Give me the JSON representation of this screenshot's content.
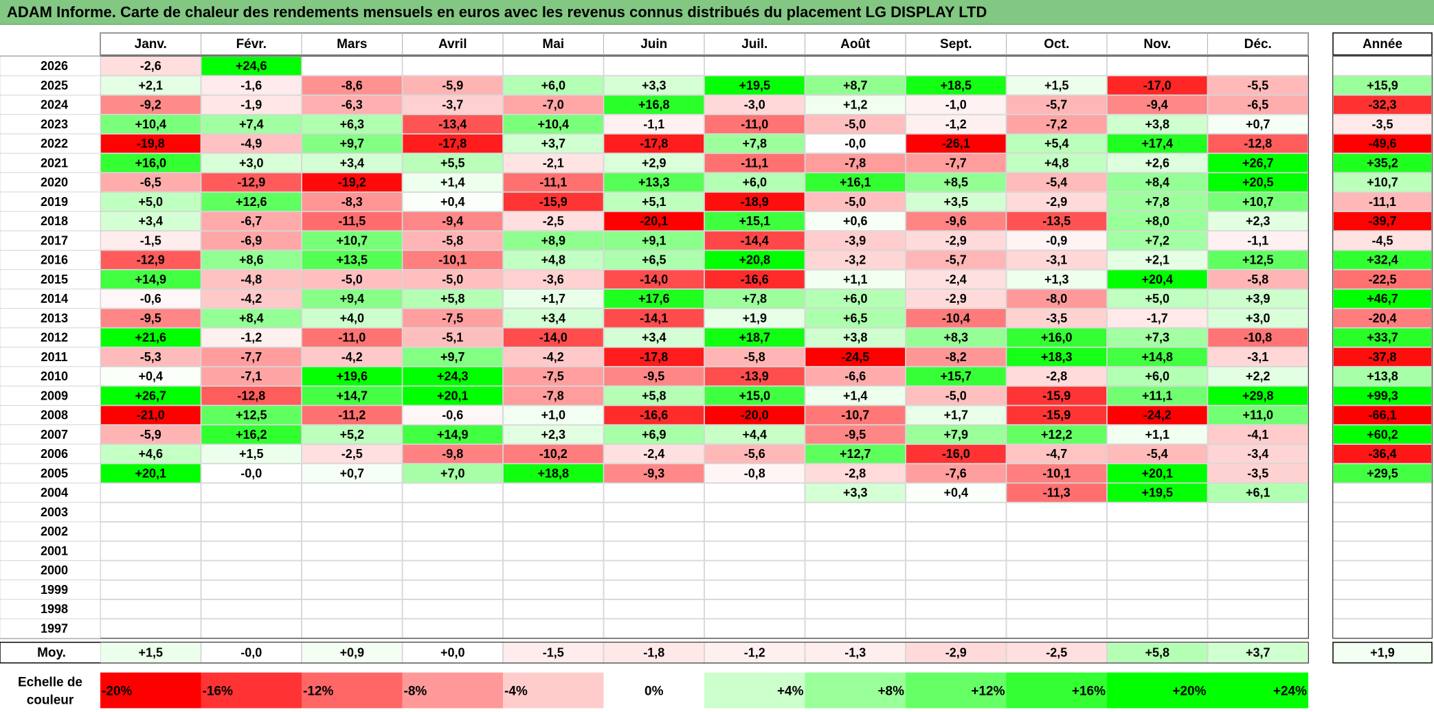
{
  "title": "ADAM Informe. Carte de chaleur des rendements mensuels en euros avec les revenus connus distribués du placement LG DISPLAY LTD",
  "chart_data": {
    "type": "heatmap",
    "months": [
      "Janv.",
      "Févr.",
      "Mars",
      "Avril",
      "Mai",
      "Juin",
      "Juil.",
      "Août",
      "Sept.",
      "Oct.",
      "Nov.",
      "Déc."
    ],
    "year_header": "Année",
    "rows": [
      {
        "year": "2026",
        "months": [
          "-2,6",
          "+24,6",
          "",
          "",
          "",
          "",
          "",
          "",
          "",
          "",
          "",
          ""
        ],
        "annual": ""
      },
      {
        "year": "2025",
        "months": [
          "+2,1",
          "-1,6",
          "-8,6",
          "-5,9",
          "+6,0",
          "+3,3",
          "+19,5",
          "+8,7",
          "+18,5",
          "+1,5",
          "-17,0",
          "-5,5"
        ],
        "annual": "+15,9"
      },
      {
        "year": "2024",
        "months": [
          "-9,2",
          "-1,9",
          "-6,3",
          "-3,7",
          "-7,0",
          "+16,8",
          "-3,0",
          "+1,2",
          "-1,0",
          "-5,7",
          "-9,4",
          "-6,5"
        ],
        "annual": "-32,3"
      },
      {
        "year": "2023",
        "months": [
          "+10,4",
          "+7,4",
          "+6,3",
          "-13,4",
          "+10,4",
          "-1,1",
          "-11,0",
          "-5,0",
          "-1,2",
          "-7,2",
          "+3,8",
          "+0,7"
        ],
        "annual": "-3,5"
      },
      {
        "year": "2022",
        "months": [
          "-19,8",
          "-4,9",
          "+9,7",
          "-17,8",
          "+3,7",
          "-17,8",
          "+7,8",
          "-0,0",
          "-26,1",
          "+5,4",
          "+17,4",
          "-12,8"
        ],
        "annual": "-49,6"
      },
      {
        "year": "2021",
        "months": [
          "+16,0",
          "+3,0",
          "+3,4",
          "+5,5",
          "-2,1",
          "+2,9",
          "-11,1",
          "-7,8",
          "-7,7",
          "+4,8",
          "+2,6",
          "+26,7"
        ],
        "annual": "+35,2"
      },
      {
        "year": "2020",
        "months": [
          "-6,5",
          "-12,9",
          "-19,2",
          "+1,4",
          "-11,1",
          "+13,3",
          "+6,0",
          "+16,1",
          "+8,5",
          "-5,4",
          "+8,4",
          "+20,5"
        ],
        "annual": "+10,7"
      },
      {
        "year": "2019",
        "months": [
          "+5,0",
          "+12,6",
          "-8,3",
          "+0,4",
          "-15,9",
          "+5,1",
          "-18,9",
          "-5,0",
          "+3,5",
          "-2,9",
          "+7,8",
          "+10,7"
        ],
        "annual": "-11,1"
      },
      {
        "year": "2018",
        "months": [
          "+3,4",
          "-6,7",
          "-11,5",
          "-9,4",
          "-2,5",
          "-20,1",
          "+15,1",
          "+0,6",
          "-9,6",
          "-13,5",
          "+8,0",
          "+2,3"
        ],
        "annual": "-39,7"
      },
      {
        "year": "2017",
        "months": [
          "-1,5",
          "-6,9",
          "+10,7",
          "-5,8",
          "+8,9",
          "+9,1",
          "-14,4",
          "-3,9",
          "-2,9",
          "-0,9",
          "+7,2",
          "-1,1"
        ],
        "annual": "-4,5"
      },
      {
        "year": "2016",
        "months": [
          "-12,9",
          "+8,6",
          "+13,5",
          "-10,1",
          "+4,8",
          "+6,5",
          "+20,8",
          "-3,2",
          "-5,7",
          "-3,1",
          "+2,1",
          "+12,5"
        ],
        "annual": "+32,4"
      },
      {
        "year": "2015",
        "months": [
          "+14,9",
          "-4,8",
          "-5,0",
          "-5,0",
          "-3,6",
          "-14,0",
          "-16,6",
          "+1,1",
          "-2,4",
          "+1,3",
          "+20,4",
          "-5,8"
        ],
        "annual": "-22,5"
      },
      {
        "year": "2014",
        "months": [
          "-0,6",
          "-4,2",
          "+9,4",
          "+5,8",
          "+1,7",
          "+17,6",
          "+7,8",
          "+6,0",
          "-2,9",
          "-8,0",
          "+5,0",
          "+3,9"
        ],
        "annual": "+46,7"
      },
      {
        "year": "2013",
        "months": [
          "-9,5",
          "+8,4",
          "+4,0",
          "-7,5",
          "+3,4",
          "-14,1",
          "+1,9",
          "+6,5",
          "-10,4",
          "-3,5",
          "-1,7",
          "+3,0"
        ],
        "annual": "-20,4"
      },
      {
        "year": "2012",
        "months": [
          "+21,6",
          "-1,2",
          "-11,0",
          "-5,1",
          "-14,0",
          "+3,4",
          "+18,7",
          "+3,8",
          "+8,3",
          "+16,0",
          "+7,3",
          "-10,8"
        ],
        "annual": "+33,7"
      },
      {
        "year": "2011",
        "months": [
          "-5,3",
          "-7,7",
          "-4,2",
          "+9,7",
          "-4,2",
          "-17,8",
          "-5,8",
          "-24,5",
          "-8,2",
          "+18,3",
          "+14,8",
          "-3,1"
        ],
        "annual": "-37,8"
      },
      {
        "year": "2010",
        "months": [
          "+0,4",
          "-7,1",
          "+19,6",
          "+24,3",
          "-7,5",
          "-9,5",
          "-13,9",
          "-6,6",
          "+15,7",
          "-2,8",
          "+6,0",
          "+2,2"
        ],
        "annual": "+13,8"
      },
      {
        "year": "2009",
        "months": [
          "+26,7",
          "-12,8",
          "+14,7",
          "+20,1",
          "-7,8",
          "+5,8",
          "+15,0",
          "+1,4",
          "-5,0",
          "-15,9",
          "+11,1",
          "+29,8"
        ],
        "annual": "+99,3"
      },
      {
        "year": "2008",
        "months": [
          "-21,0",
          "+12,5",
          "-11,2",
          "-0,6",
          "+1,0",
          "-16,6",
          "-20,0",
          "-10,7",
          "+1,7",
          "-15,9",
          "-24,2",
          "+11,0"
        ],
        "annual": "-66,1"
      },
      {
        "year": "2007",
        "months": [
          "-5,9",
          "+16,2",
          "+5,2",
          "+14,9",
          "+2,3",
          "+6,9",
          "+4,4",
          "-9,5",
          "+7,9",
          "+12,2",
          "+1,1",
          "-4,1"
        ],
        "annual": "+60,2"
      },
      {
        "year": "2006",
        "months": [
          "+4,6",
          "+1,5",
          "-2,5",
          "-9,8",
          "-10,2",
          "-2,4",
          "-5,6",
          "+12,7",
          "-16,0",
          "-4,7",
          "-5,4",
          "-3,4"
        ],
        "annual": "-36,4"
      },
      {
        "year": "2005",
        "months": [
          "+20,1",
          "-0,0",
          "+0,7",
          "+7,0",
          "+18,8",
          "-9,3",
          "-0,8",
          "-2,8",
          "-7,6",
          "-10,1",
          "+20,1",
          "-3,5"
        ],
        "annual": "+29,5"
      },
      {
        "year": "2004",
        "months": [
          "",
          "",
          "",
          "",
          "",
          "",
          "",
          "+3,3",
          "+0,4",
          "-11,3",
          "+19,5",
          "+6,1"
        ],
        "annual": ""
      },
      {
        "year": "2003",
        "months": [
          "",
          "",
          "",
          "",
          "",
          "",
          "",
          "",
          "",
          "",
          "",
          ""
        ],
        "annual": ""
      },
      {
        "year": "2002",
        "months": [
          "",
          "",
          "",
          "",
          "",
          "",
          "",
          "",
          "",
          "",
          "",
          ""
        ],
        "annual": ""
      },
      {
        "year": "2001",
        "months": [
          "",
          "",
          "",
          "",
          "",
          "",
          "",
          "",
          "",
          "",
          "",
          ""
        ],
        "annual": ""
      },
      {
        "year": "2000",
        "months": [
          "",
          "",
          "",
          "",
          "",
          "",
          "",
          "",
          "",
          "",
          "",
          ""
        ],
        "annual": ""
      },
      {
        "year": "1999",
        "months": [
          "",
          "",
          "",
          "",
          "",
          "",
          "",
          "",
          "",
          "",
          "",
          ""
        ],
        "annual": ""
      },
      {
        "year": "1998",
        "months": [
          "",
          "",
          "",
          "",
          "",
          "",
          "",
          "",
          "",
          "",
          "",
          ""
        ],
        "annual": ""
      },
      {
        "year": "1997",
        "months": [
          "",
          "",
          "",
          "",
          "",
          "",
          "",
          "",
          "",
          "",
          "",
          ""
        ],
        "annual": ""
      }
    ],
    "average": {
      "label": "Moy.",
      "months": [
        "+1,5",
        "-0,0",
        "+0,9",
        "+0,0",
        "-1,5",
        "-1,8",
        "-1,2",
        "-1,3",
        "-2,9",
        "-2,5",
        "+5,8",
        "+3,7"
      ],
      "annual": "+1,9"
    },
    "scale": {
      "label_lines": [
        "Echelle de",
        "couleur"
      ],
      "stops": [
        {
          "label": "-20%",
          "color": "#ff0000"
        },
        {
          "label": "-16%",
          "color": "#ff3333"
        },
        {
          "label": "-12%",
          "color": "#ff6666"
        },
        {
          "label": "-8%",
          "color": "#ff9999"
        },
        {
          "label": "-4%",
          "color": "#ffcccc"
        },
        {
          "label": "0%",
          "color": "#ffffff"
        },
        {
          "label": "+4%",
          "color": "#ccffcc"
        },
        {
          "label": "+8%",
          "color": "#99ff99"
        },
        {
          "label": "+12%",
          "color": "#66ff66"
        },
        {
          "label": "+16%",
          "color": "#33ff33"
        },
        {
          "label": "+20%",
          "color": "#00ff00"
        },
        {
          "label": "+24%",
          "color": "#00ff00"
        }
      ]
    },
    "colors": {
      "negative_max": "#ff0000",
      "neutral": "#ffffff",
      "positive_max": "#00ff00",
      "title_bar": "#82c782"
    }
  }
}
